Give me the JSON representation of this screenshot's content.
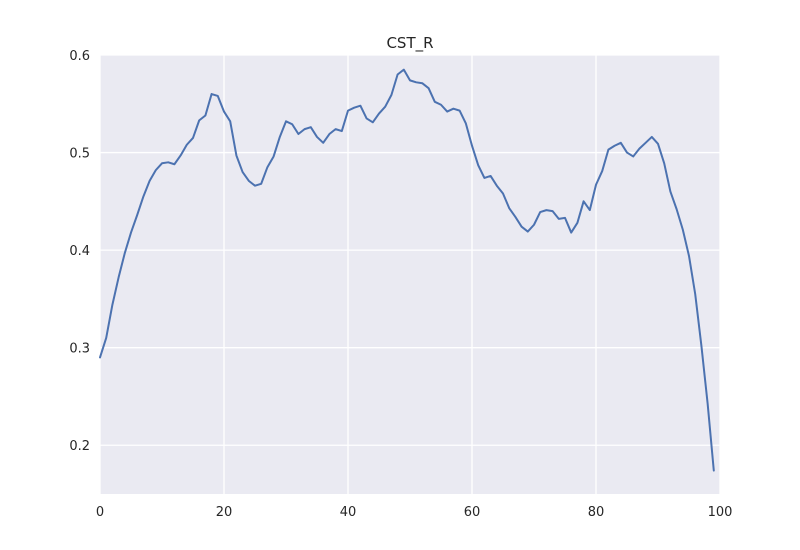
{
  "chart_data": {
    "type": "line",
    "title": "CST_R",
    "xlabel": "",
    "ylabel": "",
    "xlim": [
      0,
      100
    ],
    "ylim": [
      0.15,
      0.6
    ],
    "x_ticks": [
      0,
      20,
      40,
      60,
      80,
      100
    ],
    "x_tick_labels": [
      "0",
      "20",
      "40",
      "60",
      "80",
      "100"
    ],
    "y_ticks": [
      0.2,
      0.3,
      0.4,
      0.5,
      0.6
    ],
    "y_tick_labels": [
      "0.2",
      "0.3",
      "0.4",
      "0.5",
      "0.6"
    ],
    "grid": true,
    "background": "#eaeaf2",
    "line_color": "#4c72b0",
    "series": [
      {
        "x": [
          0,
          1,
          2,
          3,
          4,
          5,
          6,
          7,
          8,
          9,
          10,
          11,
          12,
          13,
          14,
          15,
          16,
          17,
          18,
          19,
          20,
          21,
          22,
          23,
          24,
          25,
          26,
          27,
          28,
          29,
          30,
          31,
          32,
          33,
          34,
          35,
          36,
          37,
          38,
          39,
          40,
          41,
          42,
          43,
          44,
          45,
          46,
          47,
          48,
          49,
          50,
          51,
          52,
          53,
          54,
          55,
          56,
          57,
          58,
          59,
          60,
          61,
          62,
          63,
          64,
          65,
          66,
          67,
          68,
          69,
          70,
          71,
          72,
          73,
          74,
          75,
          76,
          77,
          78,
          79,
          80,
          81,
          82,
          83,
          84,
          85,
          86,
          87,
          88,
          89,
          90,
          91,
          92,
          93,
          94,
          95,
          96,
          97,
          98,
          99
        ],
        "y": [
          0.29,
          0.31,
          0.344,
          0.372,
          0.397,
          0.418,
          0.436,
          0.455,
          0.471,
          0.482,
          0.489,
          0.49,
          0.488,
          0.497,
          0.508,
          0.515,
          0.533,
          0.538,
          0.56,
          0.558,
          0.542,
          0.532,
          0.497,
          0.48,
          0.471,
          0.466,
          0.468,
          0.485,
          0.496,
          0.516,
          0.532,
          0.529,
          0.519,
          0.524,
          0.526,
          0.516,
          0.51,
          0.519,
          0.524,
          0.522,
          0.543,
          0.546,
          0.548,
          0.535,
          0.531,
          0.54,
          0.547,
          0.559,
          0.58,
          0.585,
          0.574,
          0.572,
          0.571,
          0.566,
          0.552,
          0.549,
          0.542,
          0.545,
          0.543,
          0.53,
          0.507,
          0.487,
          0.474,
          0.476,
          0.466,
          0.458,
          0.443,
          0.434,
          0.424,
          0.419,
          0.426,
          0.439,
          0.441,
          0.44,
          0.432,
          0.433,
          0.418,
          0.428,
          0.45,
          0.441,
          0.467,
          0.481,
          0.503,
          0.507,
          0.51,
          0.5,
          0.496,
          0.504,
          0.51,
          0.516,
          0.509,
          0.489,
          0.46,
          0.442,
          0.421,
          0.394,
          0.355,
          0.302,
          0.243,
          0.174
        ]
      }
    ]
  }
}
